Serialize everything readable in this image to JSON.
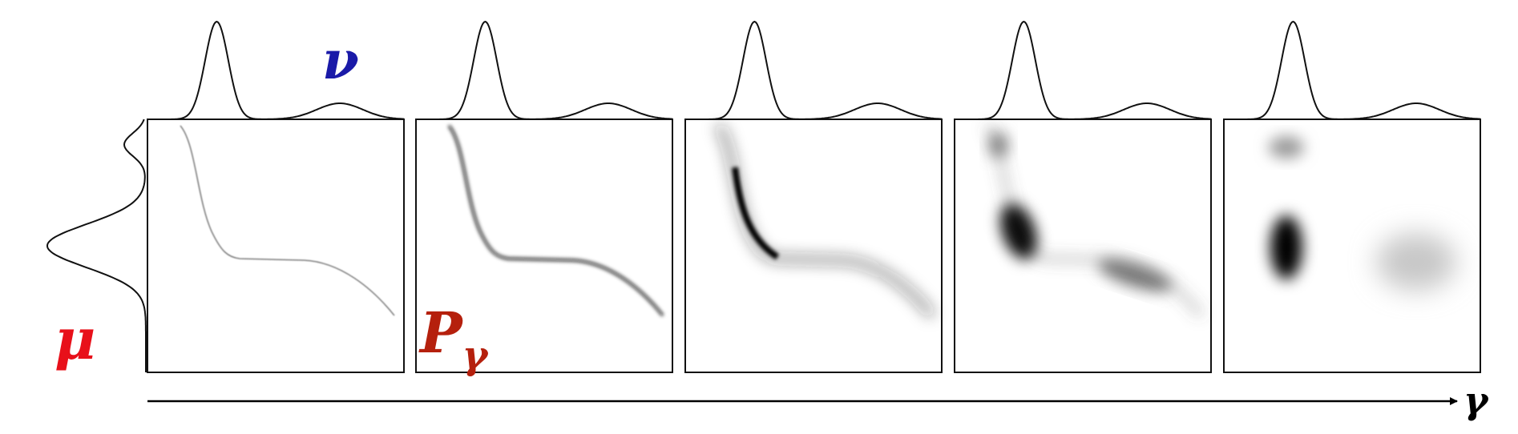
{
  "labels": {
    "nu": "ν",
    "mu": "μ",
    "p": "P",
    "p_sub": "γ",
    "gamma": "γ"
  }
}
